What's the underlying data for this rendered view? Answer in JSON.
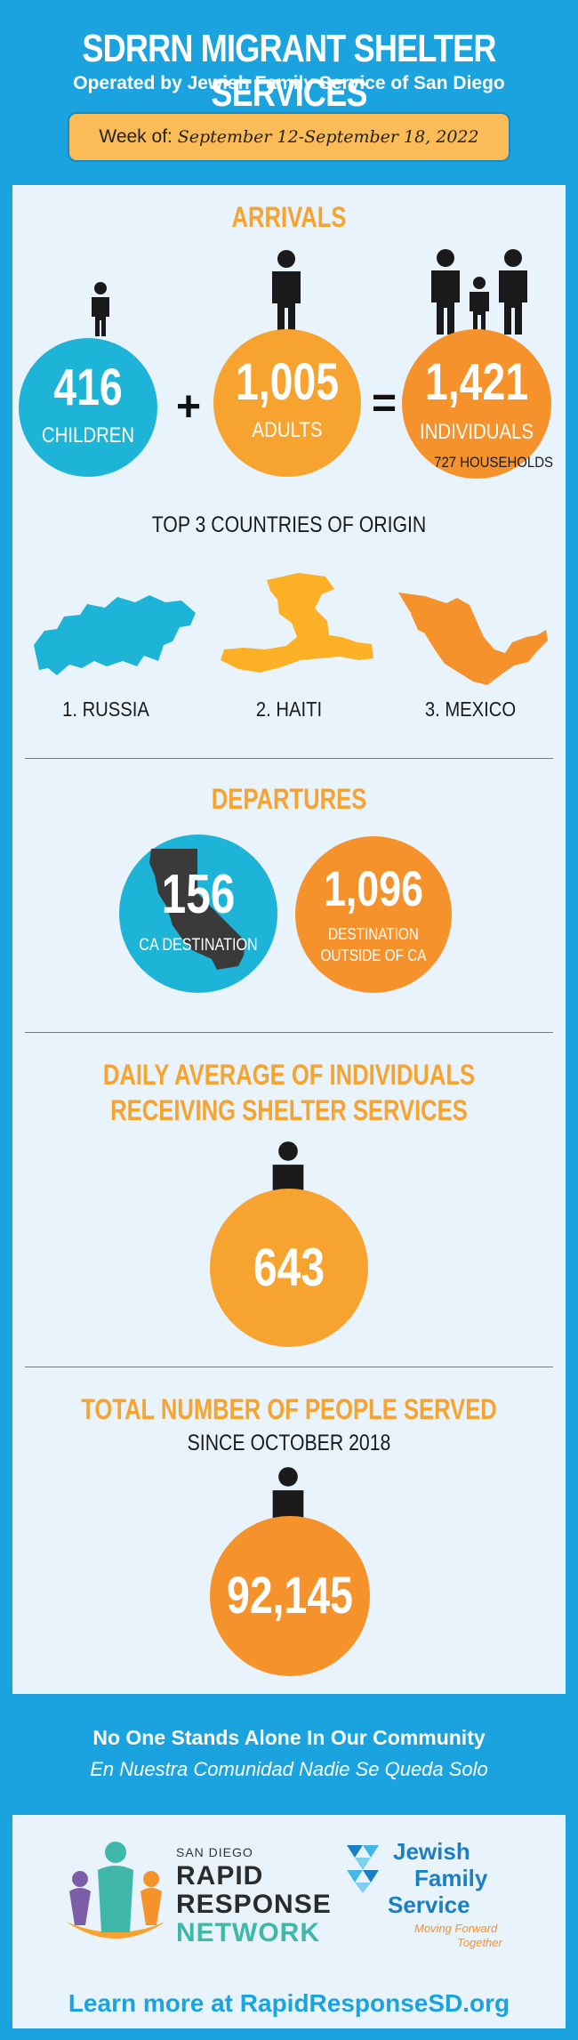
{
  "header": {
    "title": "SDRRN MIGRANT SHELTER SERVICES",
    "subtitle": "Operated by Jewish Family Service of San Diego",
    "week_label": "Week of:",
    "week_dates": "September 12-September 18, 2022"
  },
  "arrivals": {
    "title": "ARRIVALS",
    "children": {
      "value": "416",
      "label": "CHILDREN"
    },
    "adults": {
      "value": "1,005",
      "label": "ADULTS"
    },
    "individuals": {
      "value": "1,421",
      "label": "INDIVIDUALS"
    },
    "plus": "+",
    "equals": "=",
    "households": "727 HOUSEHOLDS"
  },
  "origin": {
    "title": "TOP 3 COUNTRIES OF ORIGIN",
    "countries": [
      "1. RUSSIA",
      "2. HAITI",
      "3. MEXICO"
    ]
  },
  "departures": {
    "title": "DEPARTURES",
    "ca": {
      "value": "156",
      "label": "CA DESTINATION"
    },
    "outside": {
      "value": "1,096",
      "label_line1": "DESTINATION",
      "label_line2": "OUTSIDE OF CA"
    }
  },
  "daily": {
    "title_line1": "DAILY AVERAGE OF INDIVIDUALS",
    "title_line2": "RECEIVING SHELTER SERVICES",
    "value": "643"
  },
  "total": {
    "title": "TOTAL NUMBER OF PEOPLE SERVED",
    "since": "SINCE OCTOBER 2018",
    "value": "92,145"
  },
  "slogan": {
    "en": "No One Stands Alone In Our Community",
    "es": "En Nuestra Comunidad Nadie Se Queda Solo"
  },
  "footer": {
    "rrn_small": "SAN DIEGO",
    "rrn_line1": "RAPID",
    "rrn_line2": "RESPONSE",
    "rrn_line3": "NETWORK",
    "jfs_line1": "Jewish",
    "jfs_line2": "Family",
    "jfs_line3": "Service",
    "jfs_tag1": "Moving Forward",
    "jfs_tag2": "Together",
    "learn_more": "Learn more at RapidResponseSD.org"
  },
  "colors": {
    "background": "#1ba3e0",
    "panel": "#e8f3fb",
    "blue_circle": "#1eb4d7",
    "orange_circle": "#f7a330",
    "deep_orange": "#f6922c"
  }
}
